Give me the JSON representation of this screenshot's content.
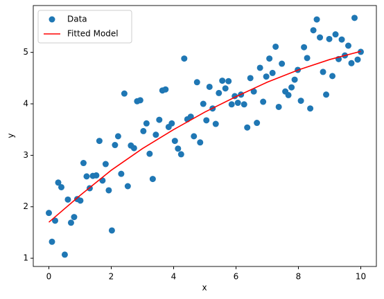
{
  "chart_data": {
    "type": "scatter",
    "xlabel": "x",
    "ylabel": "y",
    "xlim": [
      -0.5,
      10.5
    ],
    "ylim": [
      0.84,
      5.91
    ],
    "xticks": [
      0,
      2,
      4,
      6,
      8,
      10
    ],
    "yticks": [
      1,
      2,
      3,
      4,
      5
    ],
    "legend": "upper left",
    "series": [
      {
        "name": "Data",
        "type": "scatter",
        "color": "#1f77b4",
        "x": [
          0,
          0.1,
          0.2,
          0.3,
          0.4,
          0.51,
          0.61,
          0.71,
          0.81,
          0.91,
          1.01,
          1.11,
          1.21,
          1.31,
          1.41,
          1.52,
          1.62,
          1.72,
          1.82,
          1.92,
          2.02,
          2.12,
          2.22,
          2.32,
          2.42,
          2.53,
          2.63,
          2.73,
          2.83,
          2.93,
          3.03,
          3.13,
          3.23,
          3.33,
          3.43,
          3.54,
          3.64,
          3.74,
          3.84,
          3.94,
          4.04,
          4.14,
          4.24,
          4.34,
          4.44,
          4.55,
          4.65,
          4.75,
          4.85,
          4.95,
          5.05,
          5.15,
          5.25,
          5.35,
          5.45,
          5.56,
          5.66,
          5.76,
          5.86,
          5.96,
          6.06,
          6.16,
          6.26,
          6.36,
          6.46,
          6.57,
          6.67,
          6.77,
          6.87,
          6.97,
          7.07,
          7.17,
          7.27,
          7.37,
          7.47,
          7.58,
          7.68,
          7.78,
          7.88,
          7.98,
          8.08,
          8.18,
          8.28,
          8.38,
          8.48,
          8.59,
          8.69,
          8.79,
          8.89,
          8.99,
          9.09,
          9.19,
          9.29,
          9.39,
          9.49,
          9.6,
          9.7,
          9.8,
          9.9,
          10
        ],
        "values": [
          1.88,
          1.32,
          1.73,
          2.47,
          2.38,
          1.07,
          2.14,
          1.69,
          1.8,
          2.15,
          2.12,
          2.85,
          2.59,
          2.36,
          2.6,
          2.61,
          3.28,
          2.51,
          2.83,
          2.32,
          1.54,
          3.2,
          3.37,
          2.64,
          4.2,
          2.4,
          3.19,
          3.14,
          4.05,
          4.07,
          3.47,
          3.62,
          3.03,
          2.54,
          3.4,
          3.69,
          4.26,
          4.28,
          3.55,
          3.62,
          3.28,
          3.13,
          3.02,
          4.88,
          3.7,
          3.75,
          3.37,
          4.42,
          3.25,
          4.0,
          3.68,
          4.33,
          3.91,
          3.61,
          4.21,
          4.45,
          4.3,
          4.44,
          3.99,
          4.15,
          4.02,
          4.18,
          3.99,
          3.54,
          4.5,
          4.24,
          3.63,
          4.7,
          4.04,
          4.53,
          4.88,
          4.6,
          5.11,
          3.94,
          4.78,
          4.24,
          4.17,
          4.32,
          4.47,
          4.66,
          4.06,
          5.1,
          4.89,
          3.91,
          5.43,
          5.64,
          5.29,
          4.62,
          4.18,
          5.26,
          4.54,
          5.35,
          4.87,
          5.25,
          4.94,
          5.13,
          4.79,
          5.67,
          4.86,
          5.01
        ]
      },
      {
        "name": "Fitted Model",
        "type": "line",
        "color": "#ff0000",
        "x": [
          0,
          1,
          2,
          3,
          4,
          5,
          6,
          7,
          8,
          9,
          10
        ],
        "values": [
          1.7,
          2.22,
          2.71,
          3.13,
          3.5,
          3.84,
          4.14,
          4.42,
          4.66,
          4.86,
          5.02
        ]
      }
    ]
  }
}
